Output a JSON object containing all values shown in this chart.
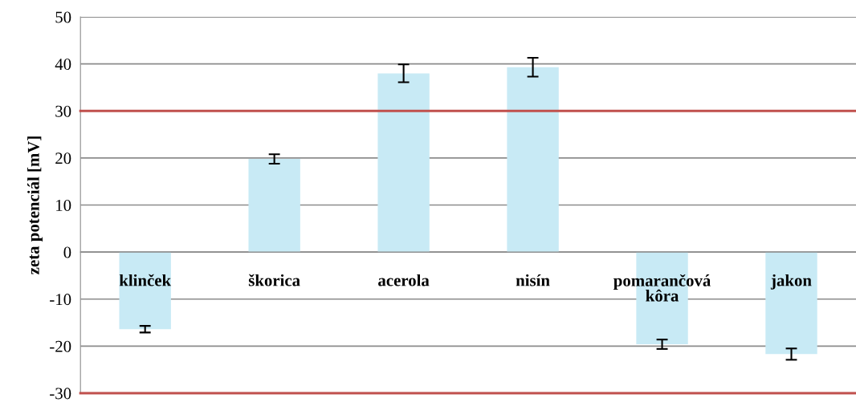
{
  "chart_data": {
    "type": "bar",
    "ylabel": "zeta potenciál [mV]",
    "categories": [
      "klinček",
      "škorica",
      "acerola",
      "nisín",
      "pomarančová\nkôra",
      "jakon"
    ],
    "values": [
      -16.4,
      19.8,
      38.0,
      39.3,
      -19.6,
      -21.7
    ],
    "errors": [
      0.7,
      1.0,
      1.9,
      2.0,
      1.0,
      1.2
    ],
    "color": "#c8eaf5",
    "ylim": [
      -30,
      50
    ],
    "yticks": [
      -30,
      -20,
      -10,
      0,
      10,
      20,
      30,
      40,
      50
    ],
    "grid": "y",
    "ref_lines": [
      {
        "axis": "y",
        "value": 30,
        "color": "#c0504d"
      },
      {
        "axis": "y",
        "value": -30,
        "color": "#c0504d"
      }
    ]
  }
}
